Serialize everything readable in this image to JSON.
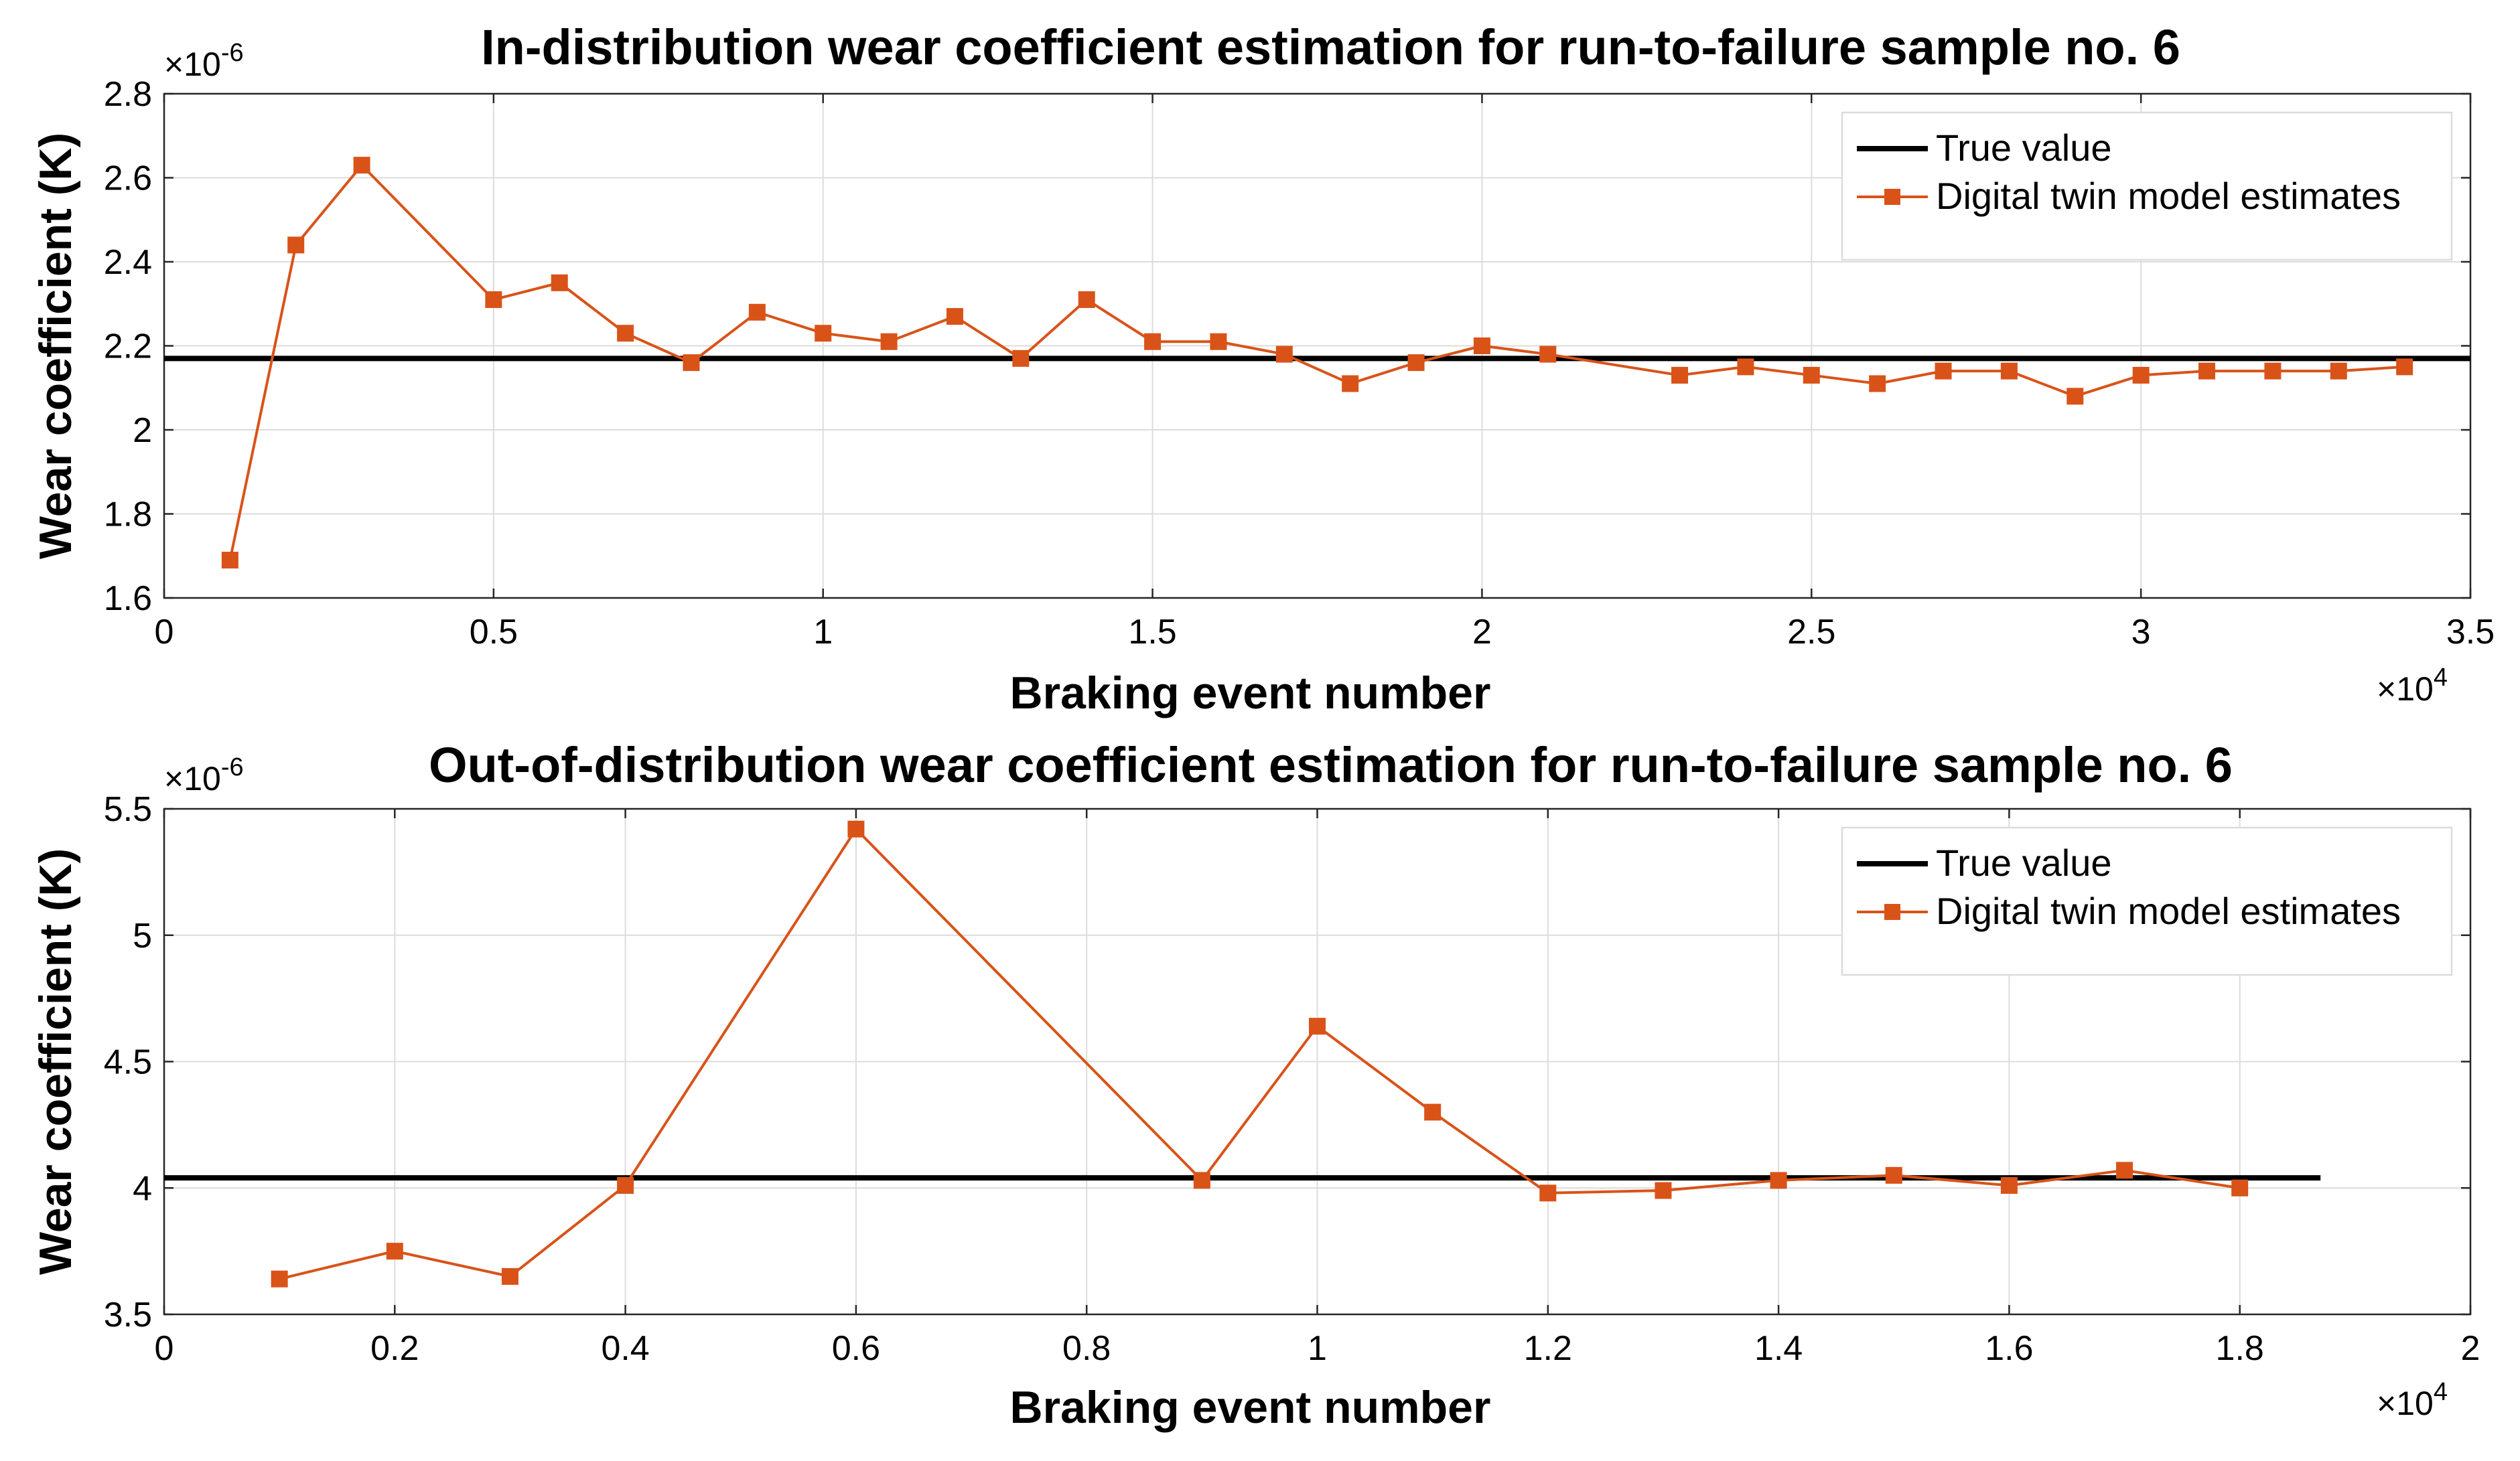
{
  "chart_data": [
    {
      "type": "line",
      "title": "In-distribution wear coefficient estimation for run-to-failure sample no. 6",
      "xlabel": "Braking event number",
      "ylabel": "Wear coefficient (K)",
      "x_multiplier": "×10",
      "x_exponent": "4",
      "y_multiplier": "×10",
      "y_exponent": "-6",
      "xlim": [
        0,
        3.5
      ],
      "ylim": [
        1.6,
        2.8
      ],
      "xticks": [
        0,
        0.5,
        1,
        1.5,
        2,
        2.5,
        3,
        3.5
      ],
      "xtick_labels": [
        "0",
        "0.5",
        "1",
        "1.5",
        "2",
        "2.5",
        "3",
        "3.5"
      ],
      "yticks": [
        1.6,
        1.8,
        2.0,
        2.2,
        2.4,
        2.6,
        2.8
      ],
      "ytick_labels": [
        "1.6",
        "1.8",
        "2",
        "2.2",
        "2.4",
        "2.6",
        "2.8"
      ],
      "grid": true,
      "legend_position": "top-right",
      "true_value": {
        "name": "True value",
        "y": 2.17,
        "x_range": [
          0,
          3.5
        ],
        "color": "#000000"
      },
      "series": [
        {
          "name": "Digital twin model estimates",
          "color": "#D95319",
          "x": [
            0.1,
            0.2,
            0.3,
            0.5,
            0.6,
            0.7,
            0.8,
            0.9,
            1.0,
            1.1,
            1.2,
            1.3,
            1.4,
            1.5,
            1.6,
            1.7,
            1.8,
            1.9,
            2.0,
            2.1,
            2.3,
            2.4,
            2.5,
            2.6,
            2.7,
            2.8,
            2.9,
            3.0,
            3.1,
            3.2,
            3.3,
            3.4
          ],
          "y": [
            1.69,
            2.44,
            2.63,
            2.31,
            2.35,
            2.23,
            2.16,
            2.28,
            2.23,
            2.21,
            2.27,
            2.17,
            2.31,
            2.21,
            2.21,
            2.18,
            2.11,
            2.16,
            2.2,
            2.18,
            2.13,
            2.15,
            2.13,
            2.11,
            2.14,
            2.14,
            2.08,
            2.13,
            2.14,
            2.14,
            2.14,
            2.15
          ]
        }
      ]
    },
    {
      "type": "line",
      "title": "Out-of-distribution wear coefficient estimation for run-to-failure sample no. 6",
      "xlabel": "Braking event number",
      "ylabel": "Wear coefficient (K)",
      "x_multiplier": "×10",
      "x_exponent": "4",
      "y_multiplier": "×10",
      "y_exponent": "-6",
      "xlim": [
        0,
        2
      ],
      "ylim": [
        3.5,
        5.5
      ],
      "xticks": [
        0,
        0.2,
        0.4,
        0.6,
        0.8,
        1.0,
        1.2,
        1.4,
        1.6,
        1.8,
        2.0
      ],
      "xtick_labels": [
        "0",
        "0.2",
        "0.4",
        "0.6",
        "0.8",
        "1",
        "1.2",
        "1.4",
        "1.6",
        "1.8",
        "2"
      ],
      "yticks": [
        3.5,
        4.0,
        4.5,
        5.0,
        5.5
      ],
      "ytick_labels": [
        "3.5",
        "4",
        "4.5",
        "5",
        "5.5"
      ],
      "grid": true,
      "legend_position": "top-right",
      "true_value": {
        "name": "True value",
        "y": 4.04,
        "x_range": [
          0,
          1.87
        ],
        "color": "#000000"
      },
      "series": [
        {
          "name": "Digital twin model estimates",
          "color": "#D95319",
          "x": [
            0.1,
            0.2,
            0.3,
            0.4,
            0.6,
            0.9,
            1.0,
            1.1,
            1.2,
            1.3,
            1.4,
            1.5,
            1.6,
            1.7,
            1.8
          ],
          "y": [
            3.64,
            3.75,
            3.65,
            4.01,
            5.42,
            4.03,
            4.64,
            4.3,
            3.98,
            3.99,
            4.03,
            4.05,
            4.01,
            4.07,
            4.0
          ]
        }
      ]
    }
  ]
}
